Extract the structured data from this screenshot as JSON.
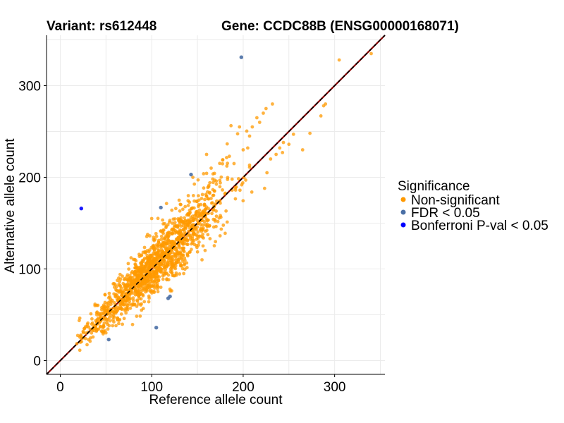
{
  "chart_data": {
    "type": "scatter",
    "title_left": "Variant: rs612448",
    "title_right": "Gene: CCDC88B (ENSG00000168071)",
    "xlabel": "Reference allele count",
    "ylabel": "Alternative allele count",
    "xlim": [
      -15,
      355
    ],
    "ylim": [
      -15,
      355
    ],
    "x_ticks": [
      0,
      100,
      200,
      300
    ],
    "y_ticks": [
      0,
      100,
      200,
      300
    ],
    "grid": true,
    "reference_line": {
      "slope": 1,
      "intercept": 0,
      "style": "dashed",
      "colors": [
        "#8b0000",
        "#000000"
      ]
    },
    "legend": {
      "title": "Significance",
      "position": "right",
      "entries": [
        {
          "label": "Non-significant",
          "color": "#ff9900"
        },
        {
          "label": "FDR < 0.05",
          "color": "#4a6fa5"
        },
        {
          "label": "Bonferroni P-val < 0.05",
          "color": "#0000ff"
        }
      ]
    },
    "series": [
      {
        "name": "Non-significant",
        "color": "#ff9900",
        "cluster": {
          "count": 1400,
          "x_min": 18,
          "x_max": 235,
          "noise_sd": 13,
          "seed": 7
        },
        "points": [
          {
            "x": 305,
            "y": 328
          },
          {
            "x": 340,
            "y": 335
          },
          {
            "x": 290,
            "y": 280
          },
          {
            "x": 288,
            "y": 278
          },
          {
            "x": 285,
            "y": 267
          },
          {
            "x": 273,
            "y": 248
          },
          {
            "x": 265,
            "y": 230
          },
          {
            "x": 255,
            "y": 247
          },
          {
            "x": 250,
            "y": 236
          },
          {
            "x": 244,
            "y": 238
          },
          {
            "x": 243,
            "y": 227
          },
          {
            "x": 240,
            "y": 232
          },
          {
            "x": 236,
            "y": 225
          },
          {
            "x": 232,
            "y": 280
          },
          {
            "x": 225,
            "y": 275
          },
          {
            "x": 222,
            "y": 270
          },
          {
            "x": 218,
            "y": 260
          },
          {
            "x": 215,
            "y": 265
          },
          {
            "x": 210,
            "y": 255
          },
          {
            "x": 207,
            "y": 245
          },
          {
            "x": 205,
            "y": 232
          },
          {
            "x": 200,
            "y": 230
          },
          {
            "x": 196,
            "y": 255
          },
          {
            "x": 190,
            "y": 215
          },
          {
            "x": 188,
            "y": 186
          },
          {
            "x": 230,
            "y": 220
          },
          {
            "x": 226,
            "y": 205
          },
          {
            "x": 180,
            "y": 182
          },
          {
            "x": 175,
            "y": 194
          },
          {
            "x": 165,
            "y": 210
          },
          {
            "x": 160,
            "y": 225
          },
          {
            "x": 145,
            "y": 200
          },
          {
            "x": 130,
            "y": 175
          },
          {
            "x": 28,
            "y": 30
          },
          {
            "x": 22,
            "y": 20
          },
          {
            "x": 40,
            "y": 50
          },
          {
            "x": 38,
            "y": 60
          },
          {
            "x": 52,
            "y": 45
          },
          {
            "x": 110,
            "y": 80
          },
          {
            "x": 120,
            "y": 78
          },
          {
            "x": 135,
            "y": 95
          },
          {
            "x": 155,
            "y": 110
          },
          {
            "x": 140,
            "y": 180
          },
          {
            "x": 100,
            "y": 155
          }
        ]
      },
      {
        "name": "FDR < 0.05",
        "color": "#4a6fa5",
        "points": [
          {
            "x": 198,
            "y": 331
          },
          {
            "x": 143,
            "y": 203
          },
          {
            "x": 110,
            "y": 167
          },
          {
            "x": 120,
            "y": 70
          },
          {
            "x": 118,
            "y": 68
          },
          {
            "x": 105,
            "y": 36
          },
          {
            "x": 53,
            "y": 23
          }
        ]
      },
      {
        "name": "Bonferroni P-val < 0.05",
        "color": "#0000ff",
        "points": [
          {
            "x": 23,
            "y": 166
          }
        ]
      }
    ]
  }
}
